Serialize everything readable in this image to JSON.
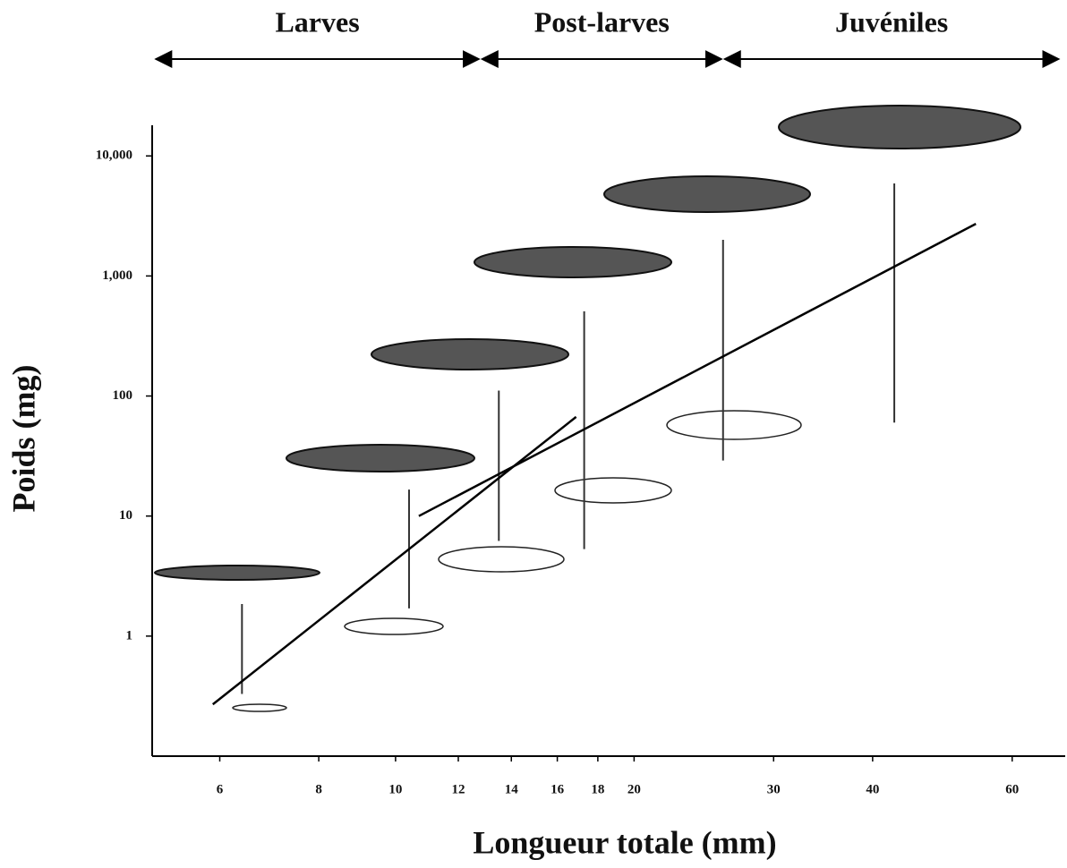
{
  "chart_data": {
    "type": "line",
    "xlabel": "Longueur totale (mm)",
    "ylabel": "Poids (mg)",
    "xscale": "log",
    "yscale": "log",
    "xlim": [
      4.93,
      70
    ],
    "ylim": [
      0.1,
      18000
    ],
    "xticks": [
      6,
      8,
      10,
      12,
      14,
      16,
      18,
      20,
      30,
      40,
      60
    ],
    "yticks": [
      1,
      10,
      100,
      {
        "value": 1000,
        "label": "1,000"
      },
      {
        "value": 10000,
        "label": "10,000"
      }
    ],
    "series": [
      {
        "color": "#000000",
        "x": [
          5.88,
          16.9
        ],
        "values": [
          0.27,
          67
        ]
      },
      {
        "color": "#000000",
        "x": [
          10.7,
          54
        ],
        "values": [
          10,
          2720
        ]
      }
    ],
    "ranges": [
      {
        "x": 6.4,
        "ymin": 0.33,
        "ymax": 1.85
      },
      {
        "x": 10.4,
        "ymin": 1.7,
        "ymax": 16.6
      },
      {
        "x": 13.5,
        "ymin": 6.2,
        "ymax": 111
      },
      {
        "x": 17.3,
        "ymin": 5.3,
        "ymax": 508
      },
      {
        "x": 25.9,
        "ymin": 29,
        "ymax": 2000
      },
      {
        "x": 42.6,
        "ymin": 60,
        "ymax": 5900
      }
    ],
    "stages": [
      {
        "label": "Larves",
        "start": 4.96,
        "end": 12.8
      },
      {
        "label": "Post-larves",
        "start": 12.8,
        "end": 25.9
      },
      {
        "label": "Juvéniles",
        "start": 25.9,
        "end": 69
      }
    ]
  }
}
